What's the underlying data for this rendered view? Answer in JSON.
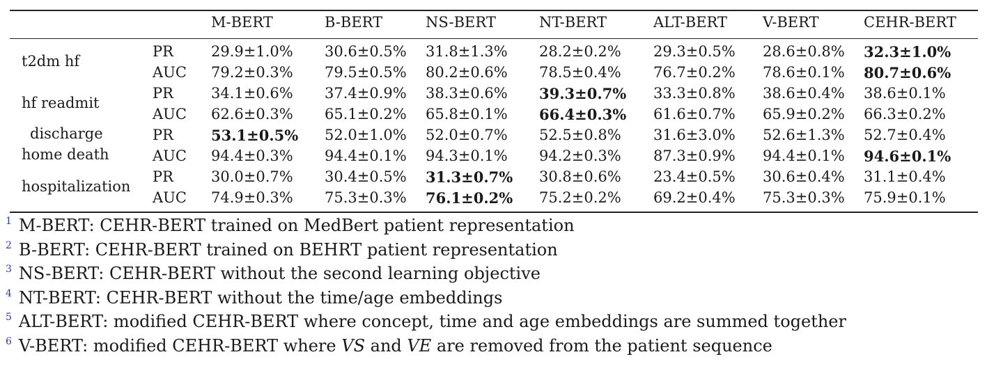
{
  "table": {
    "columns": [
      "M-BERT",
      "B-BERT",
      "NS-BERT",
      "NT-BERT",
      "ALT-BERT",
      "V-BERT",
      "CEHR-BERT"
    ],
    "tasks": [
      {
        "name": "t2dm hf",
        "name_lines": [
          "t2dm hf"
        ],
        "rows": [
          {
            "metric": "PR",
            "values": [
              "29.9±1.0%",
              "30.6±0.5%",
              "31.8±1.3%",
              "28.2±0.2%",
              "29.3±0.5%",
              "28.6±0.8%",
              "32.3±1.0%"
            ],
            "best": 6
          },
          {
            "metric": "AUC",
            "values": [
              "79.2±0.3%",
              "79.5±0.5%",
              "80.2±0.6%",
              "78.5±0.4%",
              "76.7±0.2%",
              "78.6±0.1%",
              "80.7±0.6%"
            ],
            "best": 6
          }
        ]
      },
      {
        "name": "hf readmit",
        "name_lines": [
          "hf readmit"
        ],
        "rows": [
          {
            "metric": "PR",
            "values": [
              "34.1±0.6%",
              "37.4±0.9%",
              "38.3±0.6%",
              "39.3±0.7%",
              "33.3±0.8%",
              "38.6±0.4%",
              "38.6±0.1%"
            ],
            "best": 3
          },
          {
            "metric": "AUC",
            "values": [
              "62.6±0.3%",
              "65.1±0.2%",
              "65.8±0.1%",
              "66.4±0.3%",
              "61.6±0.7%",
              "65.9±0.2%",
              "66.3±0.2%"
            ],
            "best": 3
          }
        ]
      },
      {
        "name": "discharge home death",
        "name_lines": [
          "discharge",
          "home death"
        ],
        "rows": [
          {
            "metric": "PR",
            "values": [
              "53.1±0.5%",
              "52.0±1.0%",
              "52.0±0.7%",
              "52.5±0.8%",
              "31.6±3.0%",
              "52.6±1.3%",
              "52.7±0.4%"
            ],
            "best": 0
          },
          {
            "metric": "AUC",
            "values": [
              "94.4±0.3%",
              "94.4±0.1%",
              "94.3±0.1%",
              "94.2±0.3%",
              "87.3±0.9%",
              "94.4±0.1%",
              "94.6±0.1%"
            ],
            "best": 6
          }
        ]
      },
      {
        "name": "hospitalization",
        "name_lines": [
          "hospitalization"
        ],
        "rows": [
          {
            "metric": "PR",
            "values": [
              "30.0±0.7%",
              "30.4±0.5%",
              "31.3±0.7%",
              "30.8±0.6%",
              "23.4±0.5%",
              "30.6±0.4%",
              "31.1±0.4%"
            ],
            "best": 2
          },
          {
            "metric": "AUC",
            "values": [
              "74.9±0.3%",
              "75.3±0.3%",
              "76.1±0.2%",
              "75.2±0.2%",
              "69.2±0.4%",
              "75.3±0.3%",
              "75.9±0.1%"
            ],
            "best": 2
          }
        ]
      }
    ]
  },
  "footnotes": [
    {
      "num": "1",
      "parts": [
        {
          "t": "M-BERT: CEHR-BERT trained on MedBert patient representation"
        }
      ]
    },
    {
      "num": "2",
      "parts": [
        {
          "t": "B-BERT: CEHR-BERT trained on BEHRT patient representation"
        }
      ]
    },
    {
      "num": "3",
      "parts": [
        {
          "t": "NS-BERT: CEHR-BERT without the second learning objective"
        }
      ]
    },
    {
      "num": "4",
      "parts": [
        {
          "t": "NT-BERT: CEHR-BERT without the time/age embeddings"
        }
      ]
    },
    {
      "num": "5",
      "parts": [
        {
          "t": "ALT-BERT: modified CEHR-BERT where concept, time and age embeddings are summed together"
        }
      ]
    },
    {
      "num": "6",
      "parts": [
        {
          "t": "V-BERT: modified CEHR-BERT where "
        },
        {
          "t": "VS",
          "i": true
        },
        {
          "t": " and "
        },
        {
          "t": "VE",
          "i": true
        },
        {
          "t": " are removed from the patient sequence"
        }
      ]
    }
  ]
}
